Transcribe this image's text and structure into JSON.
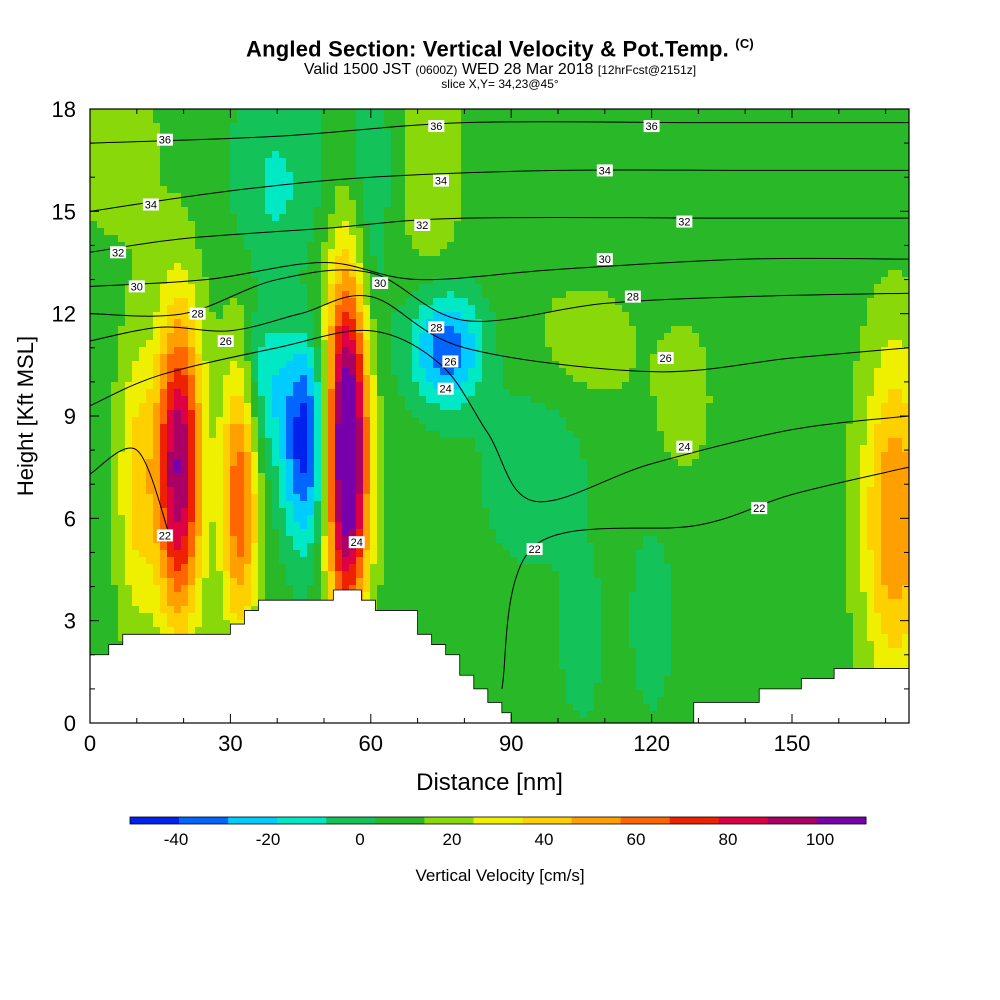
{
  "title": {
    "main": "Angled Section: Vertical Velocity & Pot.Temp.",
    "copyright": "(C)",
    "line2_a": "Valid 1500 JST",
    "line2_b": "(0600Z)",
    "line2_c": "WED 28 Mar 2018",
    "line2_d": "[12hrFcst@2151z]",
    "line3": "slice X,Y= 34,23@45°"
  },
  "colors": {
    "band_lo": [
      "#0022ee",
      "#0066ff",
      "#00ccff",
      "#00e8c4"
    ],
    "band_hi": [
      "#14c25a",
      "#28b828",
      "#88d80a",
      "#eef000",
      "#ffd000",
      "#ffa000",
      "#ff6600",
      "#ee2200",
      "#dd0044",
      "#aa0066",
      "#7700aa"
    ],
    "terrain": "#ffffff",
    "contour": "#000000"
  },
  "chart_data": {
    "type": "heatmap",
    "xlabel": "Distance [nm]",
    "ylabel": "Height [Kft MSL]",
    "xlim": [
      0,
      175
    ],
    "ylim": [
      0,
      18
    ],
    "xticks": [
      "0",
      "30",
      "60",
      "90",
      "120",
      "150"
    ],
    "yticks": [
      "0",
      "3",
      "6",
      "9",
      "12",
      "15",
      "18"
    ],
    "colorbar": {
      "label": "Vertical Velocity [cm/s]",
      "bounds": [
        -50,
        -40,
        -30,
        -20,
        -10,
        0,
        10,
        20,
        30,
        40,
        50,
        60,
        70,
        80,
        90,
        100,
        110
      ],
      "ticks": [
        "-40",
        "-20",
        "0",
        "20",
        "40",
        "60",
        "80",
        "100"
      ]
    },
    "background_cm_s": 5,
    "vertical_velocity_cells": [
      {
        "x": 19,
        "z": 7.5,
        "sx": 3.5,
        "sz": 3.2,
        "w": 85
      },
      {
        "x": 32,
        "z": 6.8,
        "sx": 2.8,
        "sz": 3.0,
        "w": 55
      },
      {
        "x": 55,
        "z": 8.0,
        "sx": 3.2,
        "sz": 3.5,
        "w": 112
      },
      {
        "x": 46,
        "z": 8.2,
        "sx": 3.5,
        "sz": 2.2,
        "w": -50
      },
      {
        "x": 37,
        "z": 10.0,
        "sx": 4.0,
        "sz": 1.8,
        "w": -22
      },
      {
        "x": 76,
        "z": 11.0,
        "sx": 5.5,
        "sz": 1.2,
        "w": -45
      },
      {
        "x": 10,
        "z": 7.0,
        "sx": 3.0,
        "sz": 3.0,
        "w": 28
      },
      {
        "x": 172,
        "z": 6.0,
        "sx": 5.0,
        "sz": 3.5,
        "w": 45
      },
      {
        "x": 40,
        "z": 15.0,
        "sx": 7.0,
        "sz": 3.0,
        "w": -18
      },
      {
        "x": 60,
        "z": 16.0,
        "sx": 3.0,
        "sz": 4.0,
        "w": -15
      },
      {
        "x": 95,
        "z": 7.5,
        "sx": 8.0,
        "sz": 2.0,
        "w": -14
      },
      {
        "x": 42,
        "z": 12.5,
        "sx": 8.0,
        "sz": 1.5,
        "w": 12
      },
      {
        "x": 73,
        "z": 16.5,
        "sx": 5.0,
        "sz": 3.0,
        "w": 12
      },
      {
        "x": 105,
        "z": 11.0,
        "sx": 10.0,
        "sz": 1.5,
        "w": 10
      },
      {
        "x": 127,
        "z": 9.5,
        "sx": 4.0,
        "sz": 1.5,
        "w": 12
      },
      {
        "x": 5,
        "z": 17.0,
        "sx": 7.0,
        "sz": 2.0,
        "w": 12
      },
      {
        "x": 105,
        "z": 2.5,
        "sx": 3.0,
        "sz": 1.6,
        "w": -14
      },
      {
        "x": 120,
        "z": 3.0,
        "sx": 3.0,
        "sz": 1.8,
        "w": -14
      }
    ],
    "theta_contours": [
      {
        "label": "22",
        "pts": [
          [
            88,
            1
          ],
          [
            95,
            5.2
          ],
          [
            130,
            5.8
          ],
          [
            150,
            6.7
          ],
          [
            175,
            7.5
          ]
        ],
        "labels_at": [
          [
            95,
            5.1
          ],
          [
            143,
            6.3
          ]
        ]
      },
      {
        "label": "22",
        "pts": [
          [
            0,
            7.3
          ],
          [
            10,
            8.0
          ],
          [
            17,
            5.5
          ]
        ],
        "labels_at": [
          [
            16,
            5.5
          ]
        ]
      },
      {
        "label": "24",
        "pts": [
          [
            0,
            9.3
          ],
          [
            15,
            10.2
          ],
          [
            40,
            11.0
          ],
          [
            60,
            11.5
          ],
          [
            75,
            10.5
          ],
          [
            85,
            8.5
          ],
          [
            95,
            6.5
          ],
          [
            120,
            7.6
          ],
          [
            150,
            8.6
          ],
          [
            175,
            9.0
          ]
        ],
        "labels_at": [
          [
            76,
            9.8
          ],
          [
            127,
            8.1
          ]
        ]
      },
      {
        "label": "26",
        "pts": [
          [
            0,
            11.2
          ],
          [
            15,
            11.6
          ],
          [
            30,
            11.5
          ],
          [
            45,
            12.0
          ],
          [
            60,
            12.5
          ],
          [
            80,
            11.0
          ],
          [
            120,
            10.3
          ],
          [
            150,
            10.7
          ],
          [
            175,
            11.0
          ]
        ],
        "labels_at": [
          [
            29,
            11.2
          ],
          [
            77,
            10.6
          ],
          [
            123,
            10.7
          ]
        ]
      },
      {
        "label": "28",
        "pts": [
          [
            0,
            12.0
          ],
          [
            20,
            12.0
          ],
          [
            40,
            13.0
          ],
          [
            60,
            13.2
          ],
          [
            80,
            11.8
          ],
          [
            110,
            12.3
          ],
          [
            140,
            12.5
          ],
          [
            175,
            12.6
          ]
        ],
        "labels_at": [
          [
            23,
            12.0
          ],
          [
            74,
            11.6
          ],
          [
            116,
            12.5
          ]
        ]
      },
      {
        "label": "30",
        "pts": [
          [
            0,
            12.8
          ],
          [
            25,
            13.0
          ],
          [
            50,
            13.5
          ],
          [
            70,
            13.0
          ],
          [
            100,
            13.3
          ],
          [
            140,
            13.6
          ],
          [
            175,
            13.6
          ]
        ],
        "labels_at": [
          [
            10,
            12.8
          ],
          [
            62,
            12.9
          ],
          [
            110,
            13.6
          ]
        ]
      },
      {
        "label": "32",
        "pts": [
          [
            0,
            13.8
          ],
          [
            20,
            14.2
          ],
          [
            50,
            14.5
          ],
          [
            80,
            14.8
          ],
          [
            140,
            14.8
          ],
          [
            175,
            14.8
          ]
        ],
        "labels_at": [
          [
            6,
            13.8
          ],
          [
            71,
            14.6
          ],
          [
            127,
            14.7
          ]
        ]
      },
      {
        "label": "34",
        "pts": [
          [
            0,
            15.0
          ],
          [
            30,
            15.6
          ],
          [
            60,
            16.0
          ],
          [
            100,
            16.2
          ],
          [
            140,
            16.2
          ],
          [
            175,
            16.2
          ]
        ],
        "labels_at": [
          [
            13,
            15.2
          ],
          [
            75,
            15.9
          ],
          [
            110,
            16.2
          ]
        ]
      },
      {
        "label": "36",
        "pts": [
          [
            0,
            17.0
          ],
          [
            40,
            17.2
          ],
          [
            80,
            17.6
          ],
          [
            130,
            17.6
          ],
          [
            175,
            17.6
          ]
        ],
        "labels_at": [
          [
            16,
            17.1
          ],
          [
            74,
            17.5
          ],
          [
            120,
            17.5
          ]
        ]
      }
    ],
    "colorbar_note": "",
    "extra_contour_labels": [
      {
        "label": "24",
        "x": 57,
        "z": 5.3
      }
    ],
    "terrain_profile": [
      [
        0,
        2.0
      ],
      [
        4,
        2.0
      ],
      [
        4,
        2.3
      ],
      [
        7,
        2.3
      ],
      [
        7,
        2.6
      ],
      [
        30,
        2.6
      ],
      [
        30,
        2.9
      ],
      [
        33,
        2.9
      ],
      [
        33,
        3.3
      ],
      [
        36,
        3.3
      ],
      [
        36,
        3.6
      ],
      [
        52,
        3.6
      ],
      [
        52,
        3.9
      ],
      [
        58,
        3.9
      ],
      [
        58,
        3.6
      ],
      [
        61,
        3.6
      ],
      [
        61,
        3.3
      ],
      [
        70,
        3.3
      ],
      [
        70,
        2.6
      ],
      [
        73,
        2.6
      ],
      [
        73,
        2.3
      ],
      [
        76,
        2.3
      ],
      [
        76,
        2.0
      ],
      [
        79,
        2.0
      ],
      [
        79,
        1.4
      ],
      [
        82,
        1.4
      ],
      [
        82,
        1.0
      ],
      [
        85,
        1.0
      ],
      [
        85,
        0.6
      ],
      [
        88,
        0.6
      ],
      [
        88,
        0.3
      ],
      [
        90,
        0.3
      ],
      [
        90,
        0.0
      ],
      [
        129,
        0.0
      ],
      [
        129,
        0.6
      ],
      [
        143,
        0.6
      ],
      [
        143,
        1.0
      ],
      [
        152,
        1.0
      ],
      [
        152,
        1.3
      ],
      [
        159,
        1.3
      ],
      [
        159,
        1.6
      ],
      [
        175,
        1.6
      ],
      [
        175,
        0
      ],
      [
        0,
        0
      ]
    ]
  }
}
